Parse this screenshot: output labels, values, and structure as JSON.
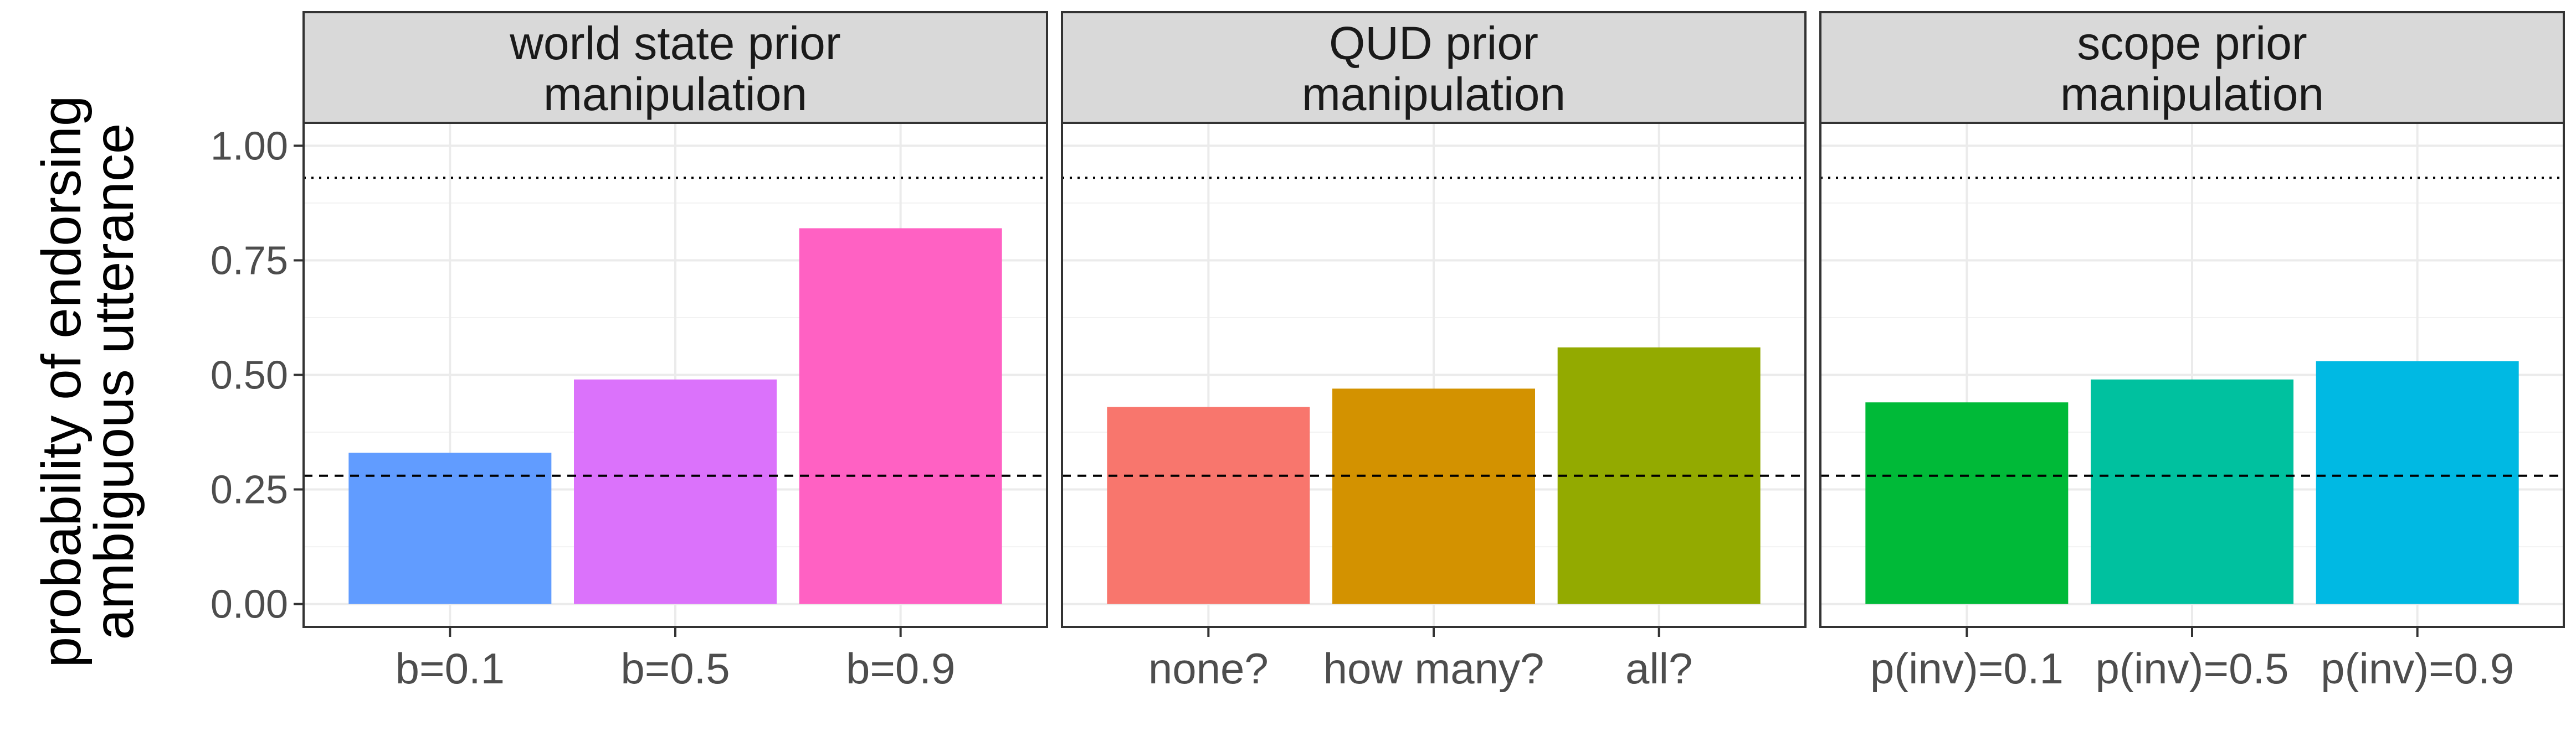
{
  "chart_data": {
    "type": "bar",
    "ylabel": [
      "probability of endorsing",
      "ambiguous utterance"
    ],
    "ylim": [
      -0.05,
      1.05
    ],
    "yticks": [
      "0.00",
      "0.25",
      "0.50",
      "0.75",
      "1.00"
    ],
    "ytick_values": [
      0,
      0.25,
      0.5,
      0.75,
      1.0
    ],
    "grid": true,
    "reference_lines": [
      {
        "style": "dashed",
        "y": 0.28
      },
      {
        "style": "dotted",
        "y": 0.93
      }
    ],
    "panels": [
      {
        "title": [
          "world state prior",
          "manipulation"
        ],
        "categories": [
          "b=0.1",
          "b=0.5",
          "b=0.9"
        ],
        "values": [
          0.33,
          0.49,
          0.82
        ],
        "colors": [
          "#619CFF",
          "#DB72FB",
          "#FF61C3"
        ]
      },
      {
        "title": [
          "QUD prior",
          "manipulation"
        ],
        "categories": [
          "none?",
          "how many?",
          "all?"
        ],
        "values": [
          0.43,
          0.47,
          0.56
        ],
        "colors": [
          "#F8766D",
          "#D39200",
          "#93AA00"
        ]
      },
      {
        "title": [
          "scope prior",
          "manipulation"
        ],
        "categories": [
          "p(inv)=0.1",
          "p(inv)=0.5",
          "p(inv)=0.9"
        ],
        "values": [
          0.44,
          0.49,
          0.53
        ],
        "colors": [
          "#00BA38",
          "#00C19F",
          "#00B9E3"
        ]
      }
    ]
  }
}
